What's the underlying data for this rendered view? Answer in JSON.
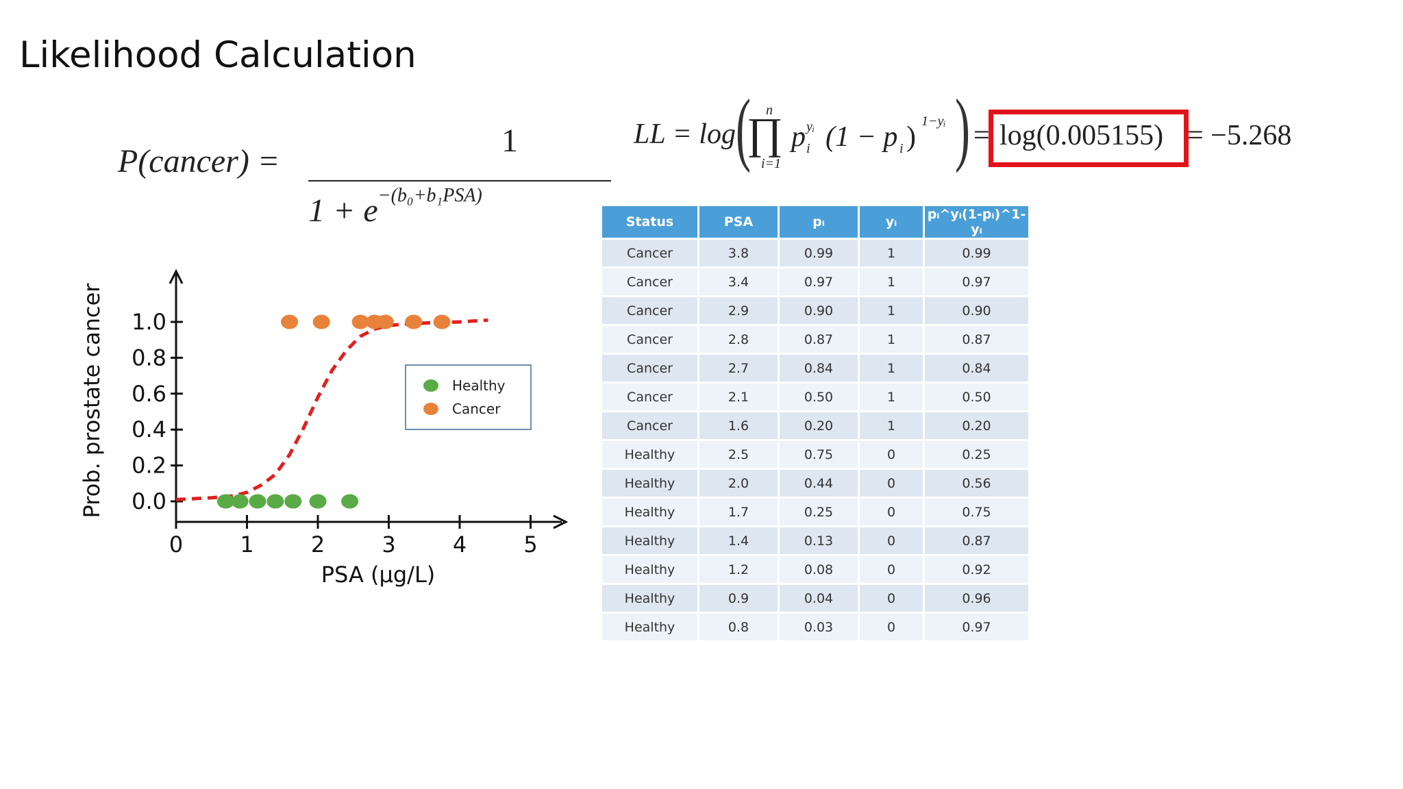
{
  "slide": {
    "title": "Likelihood Calculation"
  },
  "formulas": {
    "sigmoid_lhs": "P(cancer) =",
    "sigmoid_numerator": "1",
    "sigmoid_denominator_base": "1 + e",
    "sigmoid_denominator_exp": "−(b₀+b₁PSA)",
    "ll_lhs": "LL = log",
    "ll_prod": "∏",
    "ll_prod_top": "n",
    "ll_prod_bottom": "i=1",
    "ll_term1": "p",
    "ll_term1_sub": "i",
    "ll_term1_sup": "yᵢ",
    "ll_term2": "(1 − p",
    "ll_term2_sub": "i",
    "ll_term2_close": ")",
    "ll_term2_sup": "1−yᵢ",
    "ll_equals": "=",
    "ll_highlight": "log(0.005155)",
    "ll_result": "= −5.268"
  },
  "colors": {
    "healthy": "#5aab45",
    "cancer": "#e8823a",
    "curve": "#e02020",
    "header": "#4a9fd8",
    "highlight_box": "#e0141a"
  },
  "table": {
    "headers": [
      "Status",
      "PSA",
      "pᵢ",
      "yᵢ",
      "pᵢ^yᵢ(1-pᵢ)^1-yᵢ"
    ],
    "rows": [
      [
        "Cancer",
        "3.8",
        "0.99",
        "1",
        "0.99"
      ],
      [
        "Cancer",
        "3.4",
        "0.97",
        "1",
        "0.97"
      ],
      [
        "Cancer",
        "2.9",
        "0.90",
        "1",
        "0.90"
      ],
      [
        "Cancer",
        "2.8",
        "0.87",
        "1",
        "0.87"
      ],
      [
        "Cancer",
        "2.7",
        "0.84",
        "1",
        "0.84"
      ],
      [
        "Cancer",
        "2.1",
        "0.50",
        "1",
        "0.50"
      ],
      [
        "Cancer",
        "1.6",
        "0.20",
        "1",
        "0.20"
      ],
      [
        "Healthy",
        "2.5",
        "0.75",
        "0",
        "0.25"
      ],
      [
        "Healthy",
        "2.0",
        "0.44",
        "0",
        "0.56"
      ],
      [
        "Healthy",
        "1.7",
        "0.25",
        "0",
        "0.75"
      ],
      [
        "Healthy",
        "1.4",
        "0.13",
        "0",
        "0.87"
      ],
      [
        "Healthy",
        "1.2",
        "0.08",
        "0",
        "0.92"
      ],
      [
        "Healthy",
        "0.9",
        "0.04",
        "0",
        "0.96"
      ],
      [
        "Healthy",
        "0.8",
        "0.03",
        "0",
        "0.97"
      ]
    ]
  },
  "chart_data": {
    "type": "scatter",
    "title": "",
    "xlabel": "PSA (µg/L)",
    "ylabel": "Prob. prostate cancer",
    "xlim": [
      0,
      5
    ],
    "ylim": [
      0,
      1.0
    ],
    "x_ticks": [
      "0",
      "1",
      "2",
      "3",
      "4",
      "5"
    ],
    "y_ticks": [
      "0.0",
      "0.2",
      "0.4",
      "0.6",
      "0.8",
      "1.0"
    ],
    "legend_position": "right",
    "series": [
      {
        "name": "Healthy",
        "x": [
          0.7,
          0.9,
          1.15,
          1.4,
          1.65,
          2.0,
          2.45
        ],
        "y": [
          0,
          0,
          0,
          0,
          0,
          0,
          0
        ]
      },
      {
        "name": "Cancer",
        "x": [
          1.6,
          2.05,
          2.6,
          2.8,
          2.95,
          3.35,
          3.75
        ],
        "y": [
          1,
          1,
          1,
          1,
          1,
          1,
          1
        ]
      }
    ],
    "curve": {
      "x": [
        0,
        0.5,
        0.8,
        1.0,
        1.2,
        1.4,
        1.6,
        1.8,
        2.0,
        2.2,
        2.4,
        2.6,
        2.8,
        3.0,
        3.3,
        3.6,
        4.0,
        4.4
      ],
      "y": [
        0.01,
        0.02,
        0.03,
        0.05,
        0.09,
        0.15,
        0.26,
        0.41,
        0.58,
        0.73,
        0.84,
        0.92,
        0.96,
        0.98,
        0.99,
        0.995,
        1.0,
        1.01
      ]
    }
  }
}
